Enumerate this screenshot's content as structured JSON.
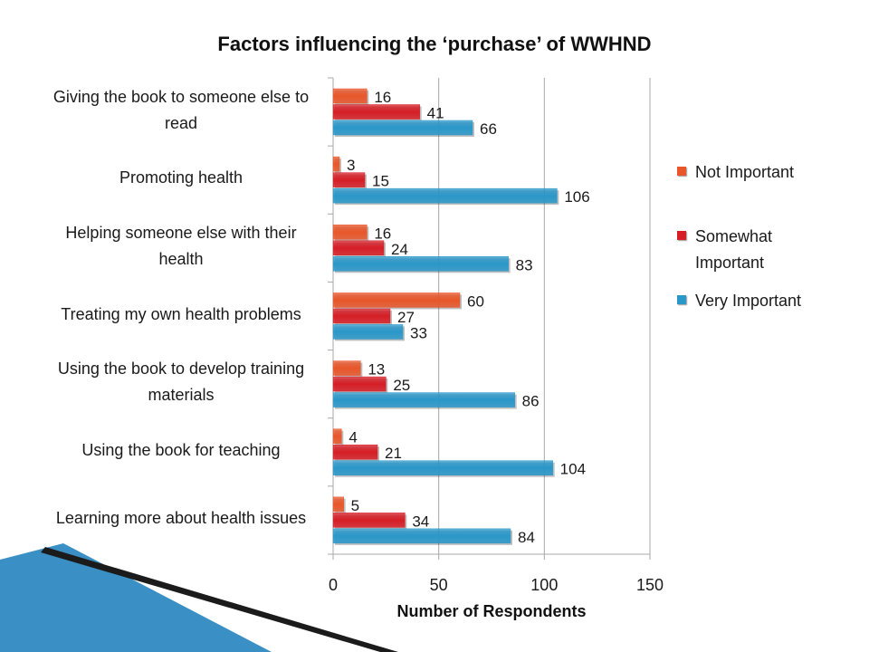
{
  "colors": {
    "not_important": "#E8562A",
    "somewhat_important": "#D61E26",
    "very_important": "#2A97C9",
    "grid": "#a8a8a8",
    "deco_dark": "#1b1b1b",
    "deco_blue": "#3a8fc4"
  },
  "chart_data": {
    "type": "bar",
    "orientation": "horizontal",
    "title": "Factors influencing the ‘purchase’ of WWHND",
    "xlabel": "Number of Respondents",
    "ylabel": "",
    "xlim": [
      0,
      150
    ],
    "xticks": [
      "0",
      "50",
      "100",
      "150"
    ],
    "grid": true,
    "legend_position": "right",
    "categories": [
      "Giving the book to someone else to read",
      "Promoting health",
      "Helping someone else with their health",
      "Treating my own health problems",
      "Using the book to develop training materials",
      "Using the book for teaching",
      "Learning more about health issues"
    ],
    "series": [
      {
        "name": "Not Important",
        "values": [
          16,
          3,
          16,
          60,
          13,
          4,
          5
        ]
      },
      {
        "name": "Somewhat Important",
        "values": [
          41,
          15,
          24,
          27,
          25,
          21,
          34
        ]
      },
      {
        "name": "Very Important",
        "values": [
          66,
          106,
          83,
          33,
          86,
          104,
          84
        ]
      }
    ]
  }
}
